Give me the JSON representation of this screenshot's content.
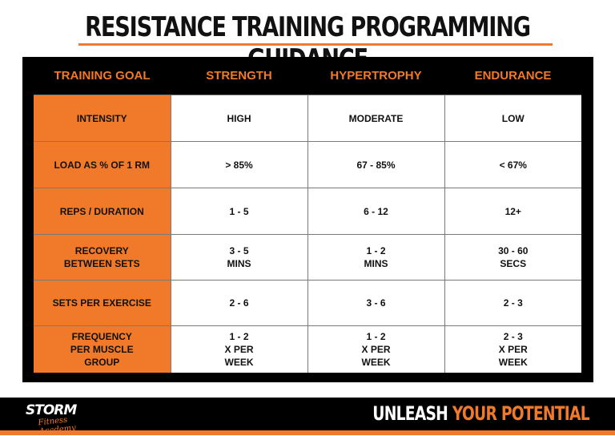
{
  "title": "RESISTANCE TRAINING PROGRAMMING GUIDANCE",
  "colors": {
    "accent": "#f07a2a",
    "board": "#000000",
    "cell": "#ffffff"
  },
  "table": {
    "headers": [
      "TRAINING GOAL",
      "STRENGTH",
      "HYPERTROPHY",
      "ENDURANCE"
    ],
    "rows": [
      {
        "label": "INTENSITY",
        "strength": "HIGH",
        "hypertrophy": "MODERATE",
        "endurance": "LOW"
      },
      {
        "label": "LOAD AS % OF 1 RM",
        "strength": "> 85%",
        "hypertrophy": "67 - 85%",
        "endurance": "< 67%"
      },
      {
        "label": "REPS / DURATION",
        "strength": "1 - 5",
        "hypertrophy": "6 - 12",
        "endurance": "12+"
      },
      {
        "label": "RECOVERY\nBETWEEN SETS",
        "strength": "3 - 5\nMINS",
        "hypertrophy": "1 - 2\nMINS",
        "endurance": "30 - 60\nSECS"
      },
      {
        "label": "SETS PER EXERCISE",
        "strength": "2 - 6",
        "hypertrophy": "3 - 6",
        "endurance": "2 - 3"
      },
      {
        "label": "FREQUENCY\nPER MUSCLE\nGROUP",
        "strength": "1 - 2\nX PER\nWEEK",
        "hypertrophy": "1 - 2\nX PER\nWEEK",
        "endurance": "2 - 3\nX PER\nWEEK"
      }
    ]
  },
  "footer": {
    "logo_main": "STORM",
    "logo_sub": "Fitness Academy",
    "tagline_white": "UNLEASH",
    "tagline_orange": "YOUR POTENTIAL"
  }
}
